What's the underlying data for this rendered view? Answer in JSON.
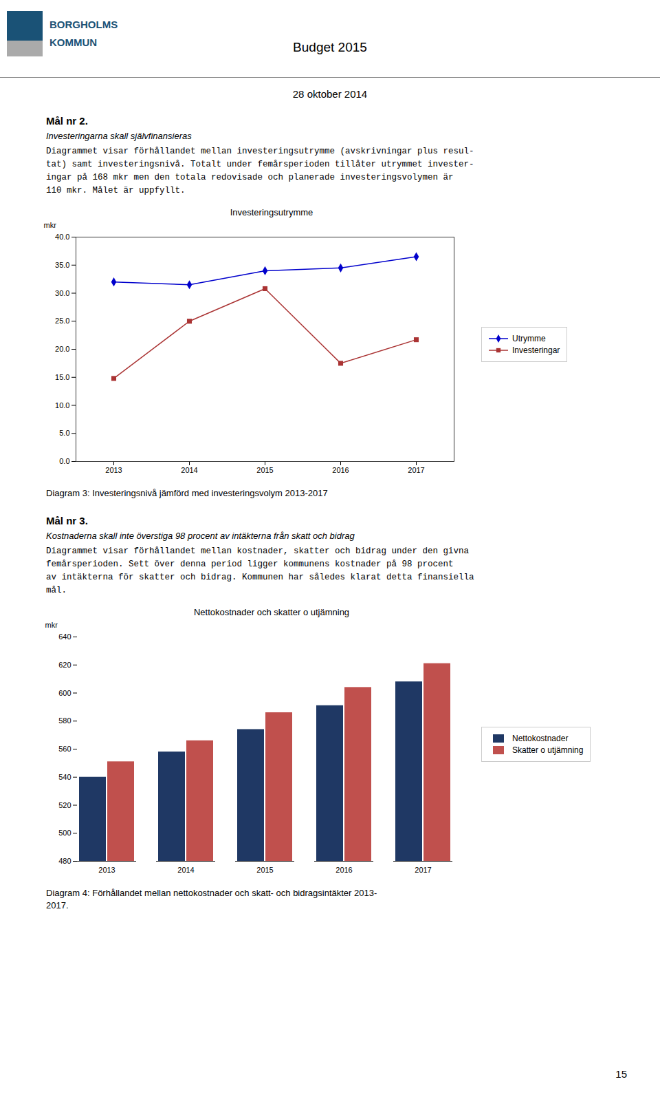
{
  "title": "Budget 2015",
  "subtitle": "28 oktober 2014",
  "logo": [
    "BORGHOLMS",
    "KOMMUN"
  ],
  "page_number": "15",
  "sections": [
    {
      "heading": "Mål nr 2.",
      "subheading": "Investeringarna skall självfinansieras",
      "text": [
        "Diagrammet visar förhållandet mellan investeringsutrymme (avskrivningar plus resul-",
        "tat) samt investeringsnivå. Totalt under femårsperioden tillåter utrymmet invester-",
        "ingar på 168 mkr men den totala redovisade och planerade investeringsvolymen är",
        "110 mkr. Målet är uppfyllt."
      ]
    },
    {
      "heading": "Mål nr 3.",
      "subheading": "Kostnaderna skall inte överstiga 98 procent av intäkterna från skatt och bidrag",
      "text": [
        "Diagrammet visar förhållandet mellan kostnader, skatter och bidrag under den givna",
        "femårsperioden. Sett över denna period ligger kommunens kostnader på 98 procent",
        "av intäkterna för skatter och bidrag. Kommunen har således klarat detta finansiella",
        "mål."
      ]
    }
  ],
  "chart_data": [
    {
      "type": "line",
      "title": "Investeringsutrymme",
      "ylabel": "mkr",
      "x": [
        2013,
        2014,
        2015,
        2016,
        2017
      ],
      "xlim": [
        2012.5,
        2017.5
      ],
      "xticks": [
        2013,
        2014,
        2015,
        2016,
        2017
      ],
      "ylim": [
        0,
        40
      ],
      "yticks": [
        {
          "value": 0,
          "label": "0.0"
        },
        {
          "value": 5,
          "label": "5.0"
        },
        {
          "value": 10,
          "label": "10.0"
        },
        {
          "value": 15,
          "label": "15.0"
        },
        {
          "value": 20,
          "label": "20.0"
        },
        {
          "value": 25,
          "label": "25.0"
        },
        {
          "value": 30,
          "label": "30.0"
        },
        {
          "value": 35,
          "label": "35.0"
        },
        {
          "value": 40,
          "label": "40.0"
        }
      ],
      "series": [
        {
          "name": "Utrymme",
          "color": "#0000cc",
          "marker": "diamond",
          "values": [
            32.0,
            31.5,
            34.0,
            34.5,
            36.5
          ]
        },
        {
          "name": "Investeringar",
          "color": "#aa3333",
          "marker": "square",
          "values": [
            14.8,
            25.0,
            30.8,
            17.5,
            21.7
          ]
        }
      ],
      "legend": "right",
      "grid": false,
      "caption": [
        "Diagram 3: Investeringsnivå jämförd med investeringsvolym 2013-2017"
      ]
    },
    {
      "type": "bar",
      "title": "Nettokostnader och skatter o utjämning",
      "ylabel": "mkr",
      "categories": [
        "2013",
        "2014",
        "2015",
        "2016",
        "2017"
      ],
      "ylim": [
        480,
        640
      ],
      "yticks": [
        480,
        500,
        520,
        540,
        560,
        580,
        600,
        620,
        640
      ],
      "series": [
        {
          "name": "Nettokostnader",
          "color": "#1f3864",
          "values": [
            540,
            558,
            574,
            591,
            608
          ]
        },
        {
          "name": "Skatter o utjämning",
          "color": "#c0504d",
          "values": [
            551,
            566,
            586,
            604,
            621
          ]
        }
      ],
      "legend": "right",
      "grid": false,
      "caption": [
        "Diagram 4: Förhållandet mellan nettokostnader och skatt- och bidragsintäkter 2013-",
        "2017."
      ]
    }
  ]
}
